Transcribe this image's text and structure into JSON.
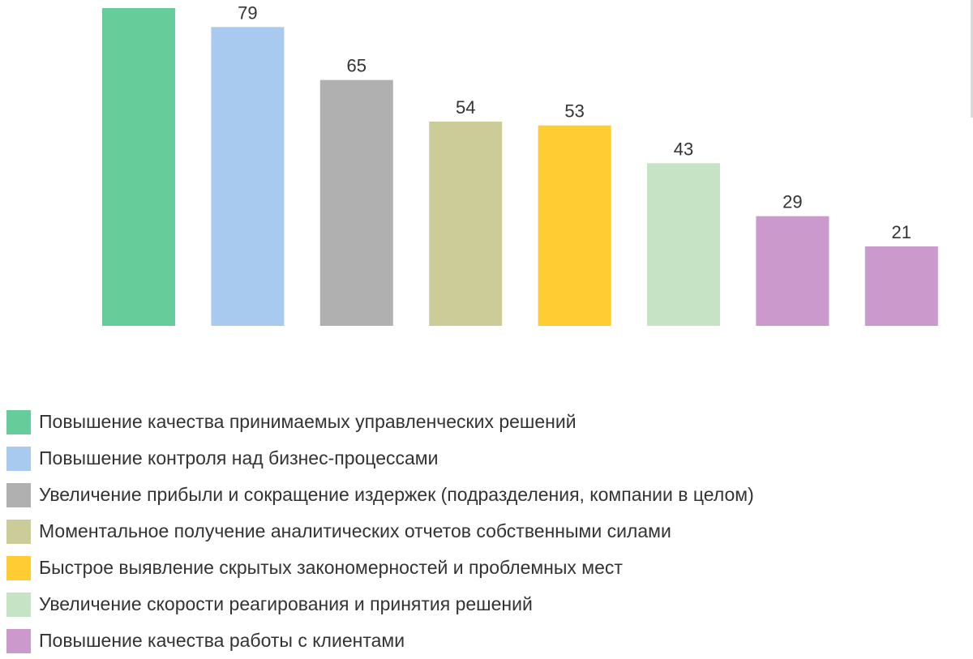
{
  "chart_data": {
    "type": "bar",
    "title": "",
    "xlabel": "",
    "ylabel": "",
    "ylim": [
      0,
      90
    ],
    "grid": false,
    "legend_position": "bottom",
    "series": [
      {
        "value": 84,
        "label": "",
        "color": "#66CC99"
      },
      {
        "value": 79,
        "label": "79",
        "color": "#A8CAEE"
      },
      {
        "value": 65,
        "label": "65",
        "color": "#B0B0B0"
      },
      {
        "value": 54,
        "label": "54",
        "color": "#CCCC99"
      },
      {
        "value": 53,
        "label": "53",
        "color": "#FFCC33"
      },
      {
        "value": 43,
        "label": "43",
        "color": "#C6E3C6"
      },
      {
        "value": 29,
        "label": "29",
        "color": "#CC99CC"
      },
      {
        "value": 21,
        "label": "21",
        "color": "#CC99CC"
      }
    ],
    "legend": [
      {
        "label": "Повышение качества принимаемых управленческих решений",
        "color": "#66CC99"
      },
      {
        "label": "Повышение контроля над бизнес-процессами",
        "color": "#A8CAEE"
      },
      {
        "label": "Увеличение прибыли и сокращение издержек (подразделения, компании в целом)",
        "color": "#B0B0B0"
      },
      {
        "label": "Моментальное получение аналитических отчетов собственными силами",
        "color": "#CCCC99"
      },
      {
        "label": "Быстрое выявление скрытых закономерностей и проблемных мест",
        "color": "#FFCC33"
      },
      {
        "label": "Увеличение скорости реагирования и принятия решений",
        "color": "#C6E3C6"
      },
      {
        "label": "Повышение качества работы с клиентами",
        "color": "#CC99CC"
      }
    ]
  }
}
